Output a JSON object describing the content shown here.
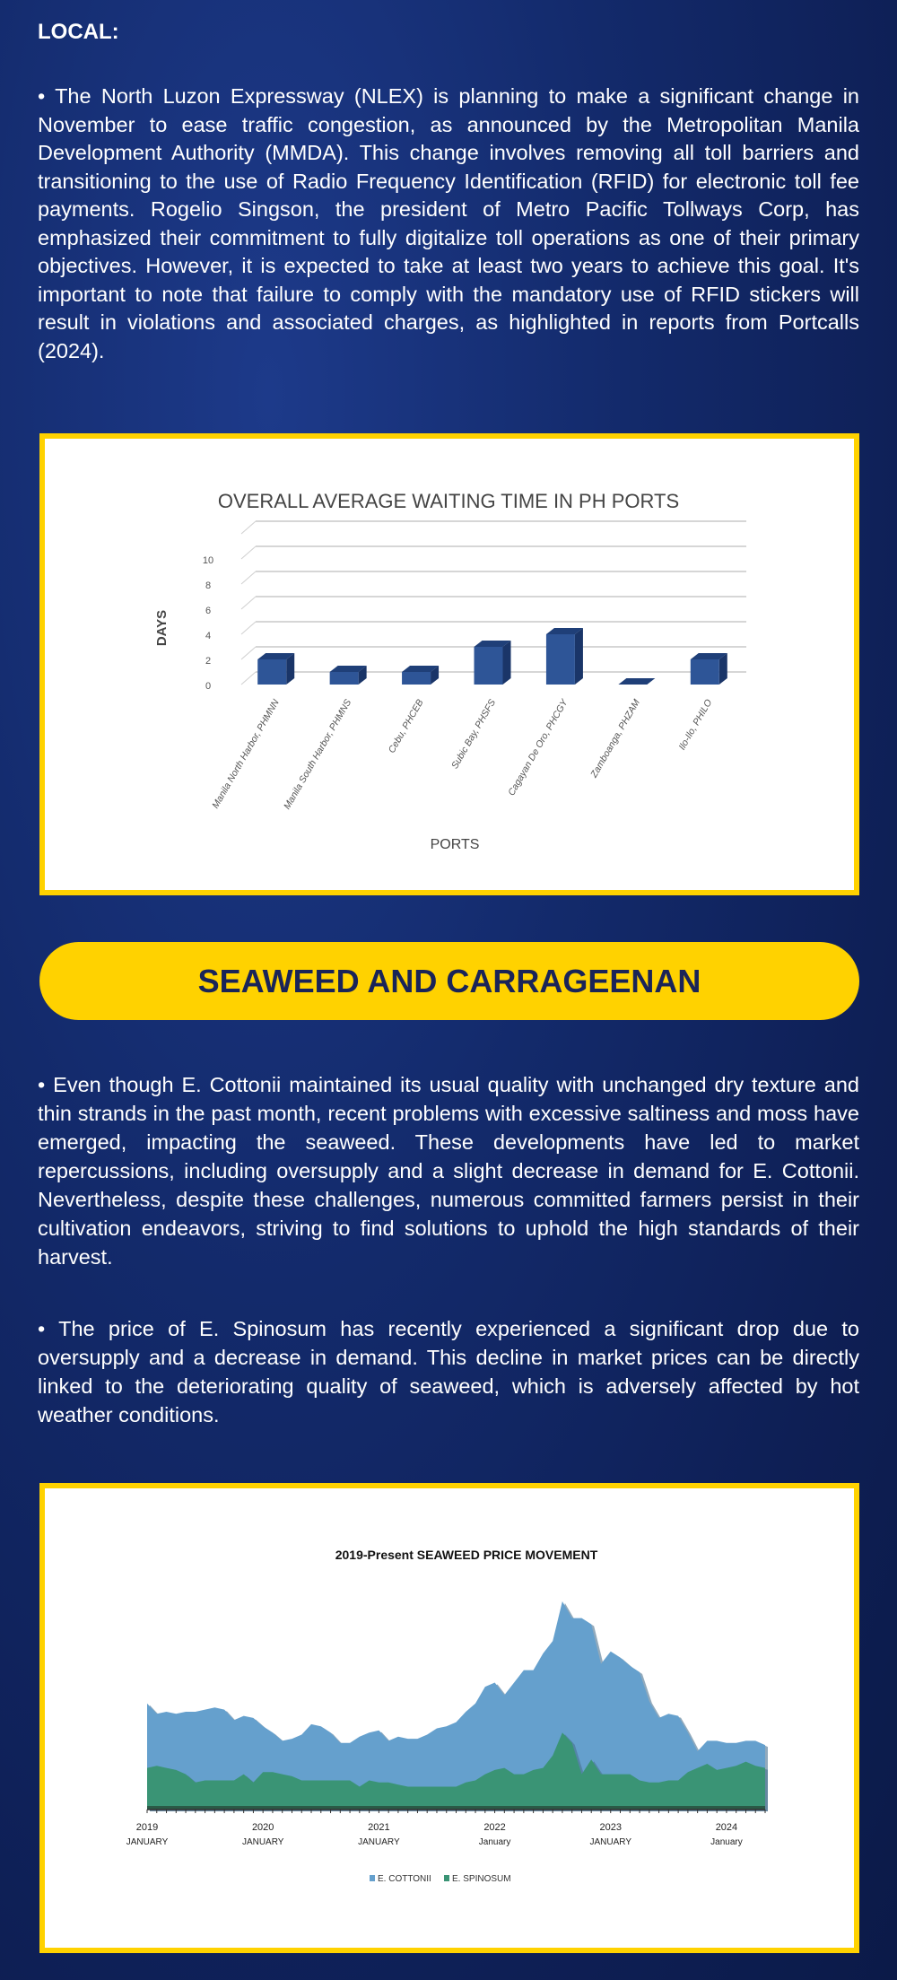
{
  "local": {
    "heading": "LOCAL:",
    "paragraph": "•  The North Luzon Expressway (NLEX) is planning to make a significant change in November to ease traffic congestion, as announced by the Metropolitan Manila Development Authority (MMDA). This change involves removing all toll barriers and transitioning to the use of Radio Frequency Identification (RFID) for electronic toll fee payments. Rogelio Singson, the president of Metro Pacific Tollways Corp, has emphasized their commitment to fully digitalize toll operations as one of their primary objectives. However, it is expected to take at least two years to achieve this goal. It's important to note that failure to comply with the mandatory use of RFID stickers will result in violations and associated charges, as highlighted in reports from Portcalls (2024)."
  },
  "seaweed": {
    "heading": "SEAWEED AND CARRAGEENAN",
    "paragraph1": "•  Even though E. Cottonii maintained its usual quality with unchanged dry texture and thin strands in the past month, recent problems with excessive saltiness and moss have emerged, impacting the seaweed. These developments have led to market repercussions, including oversupply and a slight decrease in demand for E. Cottonii. Nevertheless, despite these challenges, numerous committed farmers persist in their cultivation endeavors, striving to find solutions to uphold the high standards of their harvest.",
    "paragraph2": "•  The price of E. Spinosum has recently experienced a significant drop due to oversupply and a decrease in demand. This decline in market prices can be directly linked to the deteriorating quality of seaweed, which is adversely affected by hot weather conditions."
  },
  "colors": {
    "accent": "#ffd200",
    "navy": "#1a2458",
    "bar": "#2e5597",
    "cottonii": "#65a0cd",
    "spinosum": "#3a9475"
  },
  "chart_data": [
    {
      "type": "bar",
      "title": "OVERALL AVERAGE WAITING TIME IN PH PORTS",
      "xlabel": "PORTS",
      "ylabel": "DAYS",
      "ylim": [
        0,
        10
      ],
      "yticks": [
        "0",
        "2",
        "4",
        "6",
        "8",
        "10"
      ],
      "categories": [
        "Manila North Harbor, PHMNN",
        "Manila South Harbor, PHMNS",
        "Cebu, PHCEB",
        "Subic Bay, PHSFS",
        "Cagayan De Oro, PHCGY",
        "Zamboanga, PHZAM",
        "Ilo-Ilo, PHILO"
      ],
      "values": [
        2,
        1,
        1,
        3,
        4,
        0,
        2
      ],
      "grid": true
    },
    {
      "type": "area",
      "title": "2019-Present SEAWEED PRICE MOVEMENT",
      "x_start": "2019-01",
      "x_step": "month",
      "xticks": [
        {
          "year": "2019",
          "month": "JANUARY"
        },
        {
          "year": "2020",
          "month": "JANUARY"
        },
        {
          "year": "2021",
          "month": "JANUARY"
        },
        {
          "year": "2022",
          "month": "January"
        },
        {
          "year": "2023",
          "month": "JANUARY"
        },
        {
          "year": "2024",
          "month": "January"
        }
      ],
      "ylim": [
        0,
        100
      ],
      "legend": "bottom",
      "series": [
        {
          "name": "E. COTTONII",
          "values": [
            51,
            46,
            47,
            46,
            47,
            47,
            48,
            49,
            48,
            43,
            45,
            44,
            40,
            37,
            33,
            34,
            36,
            41,
            40,
            37,
            32,
            32,
            35,
            37,
            38,
            33,
            35,
            34,
            34,
            36,
            39,
            40,
            42,
            47,
            51,
            59,
            61,
            55,
            61,
            67,
            67,
            75,
            81,
            100,
            92,
            92,
            89,
            70,
            76,
            73,
            69,
            66,
            52,
            44,
            46,
            45,
            37,
            28,
            33,
            33,
            32,
            32,
            33,
            33,
            31
          ]
        },
        {
          "name": "E. SPINOSUM",
          "values": [
            20,
            21,
            20,
            19,
            17,
            13,
            14,
            14,
            14,
            14,
            17,
            13,
            18,
            18,
            17,
            16,
            14,
            14,
            14,
            14,
            14,
            14,
            11,
            14,
            13,
            13,
            12,
            11,
            11,
            11,
            11,
            11,
            11,
            13,
            14,
            17,
            19,
            20,
            17,
            17,
            19,
            20,
            26,
            37,
            32,
            17,
            24,
            17,
            17,
            17,
            17,
            14,
            13,
            13,
            14,
            14,
            18,
            20,
            22,
            19,
            20,
            21,
            23,
            21,
            20
          ]
        }
      ]
    }
  ]
}
